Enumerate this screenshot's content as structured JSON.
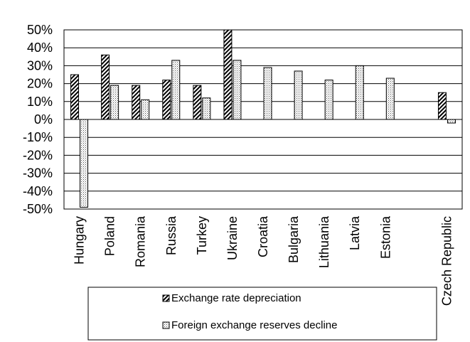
{
  "chart_data": {
    "type": "bar",
    "categories": [
      "Hungary",
      "Poland",
      "Romania",
      "Russia",
      "Turkey",
      "Ukraine",
      "Croatia",
      "Bulgaria",
      "Lithuania",
      "Latvia",
      "Estonia",
      "",
      "Czech Republic"
    ],
    "series": [
      {
        "name": "Exchange rate depreciation",
        "values": [
          25,
          36,
          19,
          22,
          19,
          50,
          null,
          null,
          null,
          null,
          null,
          null,
          15
        ]
      },
      {
        "name": "Foreign exchange reserves decline",
        "values": [
          -49,
          19,
          11,
          33,
          12,
          33,
          29,
          27,
          22,
          30,
          23,
          null,
          -2
        ]
      }
    ],
    "ylim": [
      -50,
      50
    ],
    "yticks": [
      50,
      40,
      30,
      20,
      10,
      0,
      -10,
      -20,
      -30,
      -40,
      -50
    ],
    "ytick_labels": [
      "50%",
      "40%",
      "30%",
      "20%",
      "10%",
      "0%",
      "-10%",
      "-20%",
      "-30%",
      "-40%",
      "-50%"
    ],
    "grid": true,
    "legend_position": "bottom",
    "title": "",
    "xlabel": "",
    "ylabel": ""
  }
}
